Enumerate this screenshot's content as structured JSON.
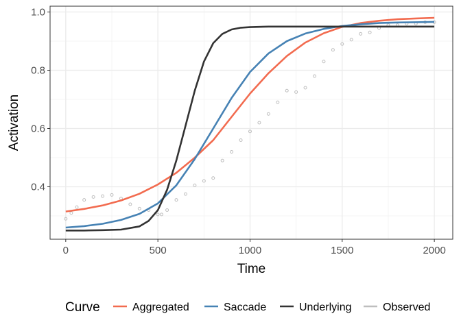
{
  "chart_data": {
    "type": "line",
    "xlabel": "Time",
    "ylabel": "Activation",
    "xlim": [
      -85,
      2100
    ],
    "ylim": [
      0.22,
      1.02
    ],
    "x_ticks": [
      0,
      500,
      1000,
      1500,
      2000
    ],
    "x_tick_labels": [
      "0",
      "500",
      "1000",
      "1500",
      "2000"
    ],
    "y_ticks": [
      0.4,
      0.6,
      0.8,
      1.0
    ],
    "y_tick_labels": [
      "0.4",
      "0.6",
      "0.8",
      "1.0"
    ],
    "grid": true,
    "legend_position": "bottom",
    "legend_title": "Curve",
    "series": [
      {
        "name": "Aggregated",
        "color": "#F26B4F",
        "style": "line",
        "x": [
          0,
          100,
          200,
          300,
          400,
          500,
          600,
          700,
          800,
          900,
          1000,
          1100,
          1200,
          1300,
          1400,
          1500,
          1600,
          1700,
          1800,
          1900,
          2000
        ],
        "y": [
          0.315,
          0.324,
          0.336,
          0.353,
          0.376,
          0.408,
          0.448,
          0.5,
          0.56,
          0.64,
          0.72,
          0.79,
          0.849,
          0.895,
          0.927,
          0.949,
          0.962,
          0.97,
          0.975,
          0.978,
          0.98
        ]
      },
      {
        "name": "Saccade",
        "color": "#4682B4",
        "style": "line",
        "x": [
          0,
          100,
          200,
          300,
          400,
          500,
          600,
          700,
          800,
          900,
          1000,
          1100,
          1200,
          1300,
          1400,
          1500,
          1600,
          1700,
          1800,
          1900,
          2000
        ],
        "y": [
          0.26,
          0.265,
          0.273,
          0.286,
          0.307,
          0.343,
          0.405,
          0.495,
          0.6,
          0.705,
          0.794,
          0.858,
          0.9,
          0.926,
          0.942,
          0.952,
          0.958,
          0.962,
          0.964,
          0.965,
          0.966
        ]
      },
      {
        "name": "Underlying",
        "color": "#333333",
        "style": "line",
        "x": [
          0,
          100,
          200,
          300,
          400,
          450,
          500,
          550,
          600,
          650,
          700,
          750,
          800,
          850,
          900,
          950,
          1000,
          1100,
          1200,
          1400,
          1600,
          1800,
          2000
        ],
        "y": [
          0.25,
          0.25,
          0.251,
          0.253,
          0.264,
          0.283,
          0.32,
          0.39,
          0.49,
          0.61,
          0.73,
          0.83,
          0.893,
          0.925,
          0.94,
          0.946,
          0.948,
          0.95,
          0.95,
          0.95,
          0.95,
          0.95,
          0.95
        ]
      },
      {
        "name": "Observed",
        "color": "#BEBEBE",
        "style": "points",
        "x": [
          0,
          30,
          60,
          100,
          150,
          200,
          250,
          300,
          350,
          400,
          450,
          500,
          520,
          550,
          600,
          650,
          700,
          750,
          800,
          850,
          900,
          950,
          1000,
          1050,
          1100,
          1150,
          1200,
          1250,
          1300,
          1350,
          1400,
          1450,
          1500,
          1550,
          1600,
          1650,
          1700,
          1750,
          1800,
          1850,
          1900,
          1950,
          2000
        ],
        "y": [
          0.29,
          0.31,
          0.33,
          0.355,
          0.365,
          0.368,
          0.372,
          0.36,
          0.34,
          0.325,
          0.32,
          0.305,
          0.305,
          0.32,
          0.355,
          0.375,
          0.405,
          0.42,
          0.43,
          0.49,
          0.52,
          0.56,
          0.59,
          0.62,
          0.65,
          0.69,
          0.73,
          0.725,
          0.74,
          0.78,
          0.83,
          0.87,
          0.89,
          0.905,
          0.925,
          0.93,
          0.945,
          0.955,
          0.955,
          0.96,
          0.96,
          0.965,
          0.965
        ]
      }
    ]
  }
}
